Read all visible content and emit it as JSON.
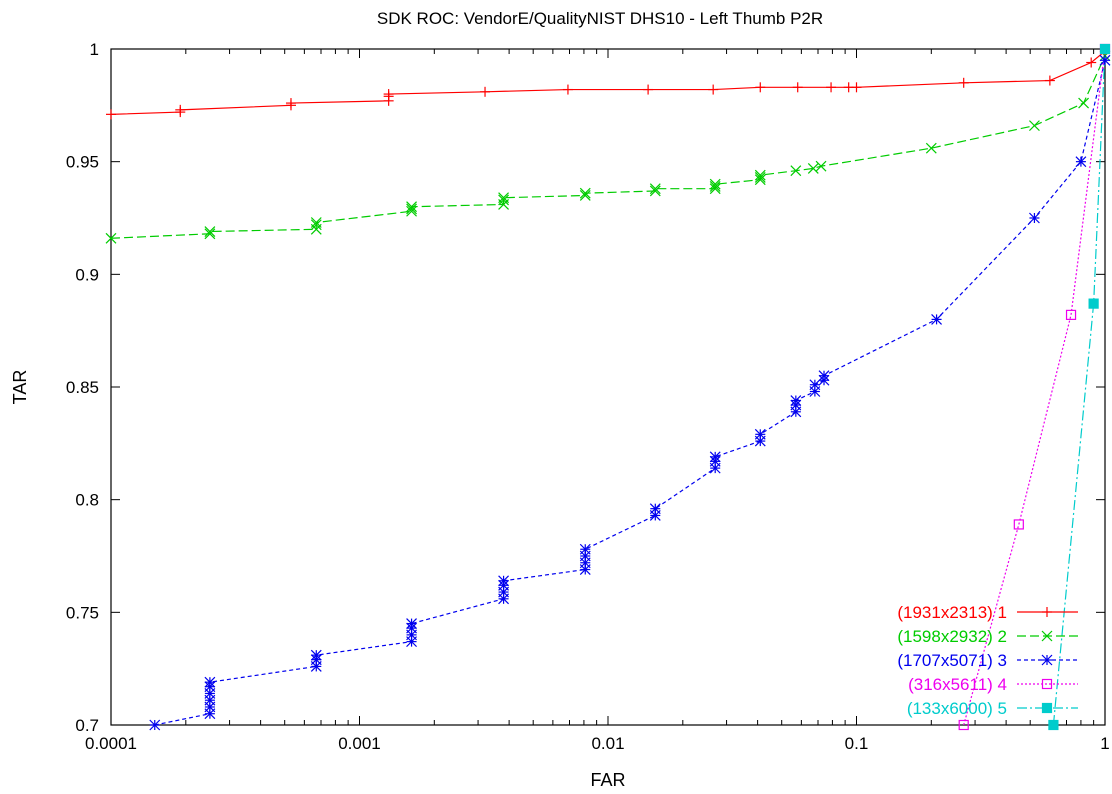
{
  "chart_data": {
    "type": "line",
    "title": "SDK ROC: VendorE/QualityNIST DHS10 - Left Thumb P2R",
    "xlabel": "FAR",
    "ylabel": "TAR",
    "xscale": "log",
    "xlim": [
      0.0001,
      1
    ],
    "ylim": [
      0.7,
      1
    ],
    "grid": false,
    "legend_position": "bottom-right",
    "x_ticks": [
      {
        "value": 0.0001,
        "label": "0.0001"
      },
      {
        "value": 0.001,
        "label": "0.001"
      },
      {
        "value": 0.01,
        "label": "0.01"
      },
      {
        "value": 0.1,
        "label": "0.1"
      },
      {
        "value": 1,
        "label": "1"
      }
    ],
    "y_ticks": [
      {
        "value": 0.7,
        "label": "0.7"
      },
      {
        "value": 0.75,
        "label": "0.75"
      },
      {
        "value": 0.8,
        "label": "0.8"
      },
      {
        "value": 0.85,
        "label": "0.85"
      },
      {
        "value": 0.9,
        "label": "0.9"
      },
      {
        "value": 0.95,
        "label": "0.95"
      },
      {
        "value": 1,
        "label": "1"
      }
    ],
    "series": [
      {
        "name": "(1931x2313) 1",
        "color": "#ff0000",
        "marker": "plus",
        "dash": "",
        "points": [
          [
            0.0001,
            0.971
          ],
          [
            0.00019,
            0.972
          ],
          [
            0.00019,
            0.973
          ],
          [
            0.00053,
            0.975
          ],
          [
            0.00053,
            0.976
          ],
          [
            0.00131,
            0.977
          ],
          [
            0.00131,
            0.979
          ],
          [
            0.00131,
            0.98
          ],
          [
            0.0032,
            0.981
          ],
          [
            0.0069,
            0.982
          ],
          [
            0.0145,
            0.982
          ],
          [
            0.0265,
            0.982
          ],
          [
            0.041,
            0.983
          ],
          [
            0.058,
            0.983
          ],
          [
            0.079,
            0.983
          ],
          [
            0.093,
            0.983
          ],
          [
            0.1,
            0.983
          ],
          [
            0.27,
            0.985
          ],
          [
            0.6,
            0.986
          ],
          [
            0.88,
            0.994
          ],
          [
            1,
            0.999
          ]
        ]
      },
      {
        "name": "(1598x2932) 2",
        "color": "#00cc00",
        "marker": "cross",
        "dash": "9,4",
        "points": [
          [
            0.0001,
            0.916
          ],
          [
            0.00025,
            0.918
          ],
          [
            0.00025,
            0.919
          ],
          [
            0.00067,
            0.92
          ],
          [
            0.00067,
            0.922
          ],
          [
            0.00067,
            0.923
          ],
          [
            0.00162,
            0.928
          ],
          [
            0.00162,
            0.929
          ],
          [
            0.00162,
            0.93
          ],
          [
            0.0038,
            0.931
          ],
          [
            0.0038,
            0.933
          ],
          [
            0.0038,
            0.934
          ],
          [
            0.0081,
            0.935
          ],
          [
            0.0081,
            0.936
          ],
          [
            0.0155,
            0.937
          ],
          [
            0.0155,
            0.938
          ],
          [
            0.027,
            0.938
          ],
          [
            0.027,
            0.939
          ],
          [
            0.027,
            0.94
          ],
          [
            0.041,
            0.942
          ],
          [
            0.041,
            0.943
          ],
          [
            0.041,
            0.944
          ],
          [
            0.057,
            0.946
          ],
          [
            0.067,
            0.947
          ],
          [
            0.072,
            0.948
          ],
          [
            0.2,
            0.956
          ],
          [
            0.52,
            0.966
          ],
          [
            0.82,
            0.976
          ],
          [
            1,
            0.997
          ]
        ]
      },
      {
        "name": "(1707x5071) 3",
        "color": "#0000ee",
        "marker": "star",
        "dash": "4,3",
        "points": [
          [
            0.00015,
            0.7
          ],
          [
            0.00025,
            0.705
          ],
          [
            0.00025,
            0.708
          ],
          [
            0.00025,
            0.711
          ],
          [
            0.00025,
            0.714
          ],
          [
            0.00025,
            0.717
          ],
          [
            0.00025,
            0.719
          ],
          [
            0.00067,
            0.726
          ],
          [
            0.00067,
            0.729
          ],
          [
            0.00067,
            0.731
          ],
          [
            0.00162,
            0.737
          ],
          [
            0.00162,
            0.74
          ],
          [
            0.00162,
            0.743
          ],
          [
            0.00162,
            0.745
          ],
          [
            0.0038,
            0.756
          ],
          [
            0.0038,
            0.759
          ],
          [
            0.0038,
            0.762
          ],
          [
            0.0038,
            0.764
          ],
          [
            0.0081,
            0.769
          ],
          [
            0.0081,
            0.772
          ],
          [
            0.0081,
            0.775
          ],
          [
            0.0081,
            0.778
          ],
          [
            0.0155,
            0.793
          ],
          [
            0.0155,
            0.796
          ],
          [
            0.027,
            0.814
          ],
          [
            0.027,
            0.817
          ],
          [
            0.027,
            0.819
          ],
          [
            0.041,
            0.826
          ],
          [
            0.041,
            0.829
          ],
          [
            0.057,
            0.839
          ],
          [
            0.057,
            0.842
          ],
          [
            0.057,
            0.844
          ],
          [
            0.068,
            0.848
          ],
          [
            0.068,
            0.851
          ],
          [
            0.074,
            0.853
          ],
          [
            0.074,
            0.855
          ],
          [
            0.21,
            0.88
          ],
          [
            0.52,
            0.925
          ],
          [
            0.8,
            0.95
          ],
          [
            1,
            0.995
          ]
        ]
      },
      {
        "name": "(316x5611) 4",
        "color": "#ee00ee",
        "marker": "square-open",
        "dash": "2,2",
        "points": [
          [
            0.27,
            0.7
          ],
          [
            0.45,
            0.789
          ],
          [
            0.73,
            0.882
          ],
          [
            1,
            1
          ]
        ]
      },
      {
        "name": "(133x6000) 5",
        "color": "#00cccc",
        "marker": "square-filled",
        "dash": "10,3,2,3",
        "points": [
          [
            0.62,
            0.7
          ],
          [
            0.9,
            0.887
          ],
          [
            1,
            1
          ]
        ]
      }
    ]
  }
}
